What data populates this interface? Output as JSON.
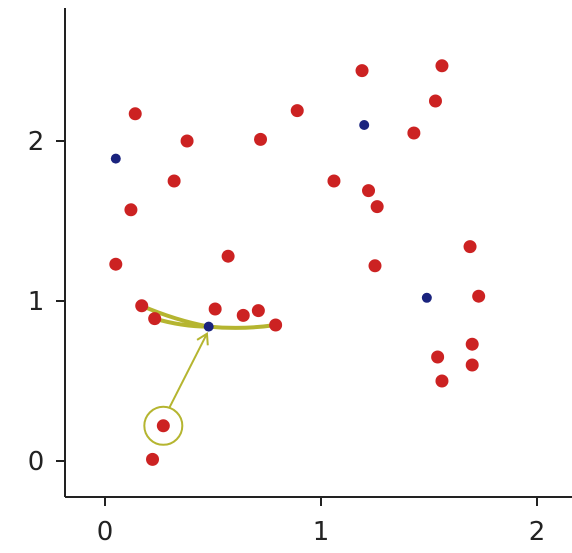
{
  "chart_data": {
    "type": "scatter",
    "title": "",
    "xlabel": "",
    "ylabel": "",
    "xlim": [
      -0.18,
      2.15
    ],
    "ylim": [
      -0.25,
      2.85
    ],
    "x_ticks": [
      "0",
      "1",
      "2"
    ],
    "y_ticks": [
      "0",
      "1",
      "2"
    ],
    "grid": false,
    "colors": {
      "points": "#cc2222",
      "centers": "#1a237e",
      "annotation": "#b5b530",
      "axis": "#222222"
    },
    "series": [
      {
        "marker": "red-points",
        "x": [
          0.14,
          0.38,
          0.12,
          0.32,
          0.05,
          0.57,
          0.72,
          0.89,
          0.17,
          0.23,
          0.51,
          0.64,
          0.71,
          0.79,
          0.27,
          0.22,
          1.06,
          1.19,
          1.22,
          1.26,
          1.25,
          1.43,
          1.53,
          1.56,
          1.69,
          1.73,
          1.54,
          1.7,
          1.7,
          1.56
        ],
        "y": [
          2.17,
          2.0,
          1.57,
          1.75,
          1.23,
          1.28,
          2.01,
          2.19,
          0.97,
          0.89,
          0.95,
          0.91,
          0.94,
          0.85,
          0.22,
          0.01,
          1.75,
          2.44,
          1.69,
          1.59,
          1.22,
          2.05,
          2.25,
          2.47,
          1.34,
          1.03,
          0.65,
          0.73,
          0.6,
          0.5
        ]
      },
      {
        "marker": "blue-centers",
        "x": [
          0.05,
          0.48,
          1.2,
          1.49
        ],
        "y": [
          1.89,
          0.84,
          2.1,
          1.02
        ]
      }
    ],
    "annotations": [
      {
        "type": "circle",
        "target": [
          0.27,
          0.22
        ]
      },
      {
        "type": "arrow",
        "from": [
          0.27,
          0.22
        ],
        "to": [
          0.47,
          0.79
        ]
      },
      {
        "type": "links",
        "center": [
          0.48,
          0.84
        ],
        "targets": [
          [
            0.17,
            0.97
          ],
          [
            0.23,
            0.89
          ],
          [
            0.79,
            0.85
          ]
        ]
      }
    ]
  }
}
